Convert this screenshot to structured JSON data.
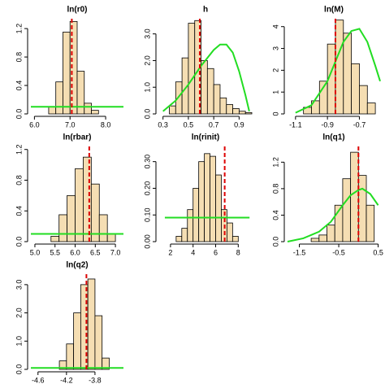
{
  "chart_data": [
    {
      "type": "histogram",
      "title": "ln(r0)",
      "bins": [
        6.4,
        6.6,
        6.8,
        7.0,
        7.2,
        7.4,
        7.6,
        7.8
      ],
      "counts": [
        0.1,
        0.45,
        1.15,
        1.3,
        0.6,
        0.15,
        0.05
      ],
      "xlim": [
        5.9,
        8.5
      ],
      "ylim": [
        0,
        1.35
      ],
      "xticks": [
        {
          "value": 6,
          "label": "6.0"
        },
        {
          "value": 7,
          "label": "7.0"
        },
        {
          "value": 8,
          "label": "8.0"
        }
      ],
      "yticks": [
        {
          "value": 0,
          "label": "0.0"
        },
        0.4,
        0.8,
        1.2
      ],
      "bar_color": "#f5deb3",
      "estimate": 7.05,
      "estimate_color": "#dd0000",
      "prior": {
        "x": [
          5.9,
          8.5
        ],
        "values": [
          0.1,
          0.1
        ]
      },
      "prior_color": "#22dd22"
    },
    {
      "type": "histogram",
      "title": "h",
      "bins": [
        0.35,
        0.4,
        0.45,
        0.5,
        0.55,
        0.6,
        0.65,
        0.7,
        0.75,
        0.8,
        0.85,
        0.9,
        0.95,
        1.0
      ],
      "counts": [
        0.3,
        1.2,
        2.1,
        3.4,
        3.5,
        2.0,
        1.7,
        1.1,
        0.6,
        0.35,
        0.2,
        0.1,
        0.05
      ],
      "xlim": [
        0.27,
        1.0
      ],
      "ylim": [
        0,
        3.6
      ],
      "xticks": [
        0.3,
        0.5,
        0.7,
        0.9
      ],
      "yticks": [
        {
          "value": 0,
          "label": "0.0"
        },
        {
          "value": 1,
          "label": "1.0"
        },
        {
          "value": 2,
          "label": "2.0"
        },
        {
          "value": 3,
          "label": "3.0"
        }
      ],
      "bar_color": "#f5deb3",
      "estimate": 0.59,
      "estimate_color": "#dd0000",
      "prior": {
        "x": [
          0.3,
          0.4,
          0.5,
          0.6,
          0.7,
          0.75,
          0.8,
          0.85,
          0.9,
          0.95,
          0.98
        ],
        "values": [
          0.1,
          0.5,
          1.1,
          1.8,
          2.4,
          2.6,
          2.6,
          2.3,
          1.6,
          0.7,
          0.1
        ]
      },
      "prior_color": "#22dd22"
    },
    {
      "type": "histogram",
      "title": "ln(M)",
      "bins": [
        -1.05,
        -1.0,
        -0.95,
        -0.9,
        -0.85,
        -0.8,
        -0.75,
        -0.7,
        -0.65,
        -0.6
      ],
      "counts": [
        0.3,
        0.6,
        1.5,
        3.2,
        4.3,
        3.7,
        2.3,
        1.3,
        0.5
      ],
      "xlim": [
        -1.15,
        -0.57
      ],
      "ylim": [
        0,
        4.4
      ],
      "xticks": [
        -1.1,
        -0.9,
        -0.7
      ],
      "yticks": [
        0,
        1,
        2,
        3,
        4
      ],
      "bar_color": "#f5deb3",
      "estimate": -0.85,
      "estimate_color": "#dd0000",
      "prior": {
        "x": [
          -1.1,
          -1.0,
          -0.9,
          -0.85,
          -0.8,
          -0.75,
          -0.7,
          -0.65,
          -0.6,
          -0.57
        ],
        "values": [
          0.05,
          0.4,
          1.5,
          2.4,
          3.3,
          3.8,
          3.9,
          3.3,
          2.2,
          1.5
        ]
      },
      "prior_color": "#22dd22"
    },
    {
      "type": "histogram",
      "title": "ln(rbar)",
      "bins": [
        5.4,
        5.6,
        5.8,
        6.0,
        6.2,
        6.4,
        6.6,
        6.8,
        7.0
      ],
      "counts": [
        0.07,
        0.35,
        0.6,
        0.95,
        1.1,
        0.75,
        0.35,
        0.1
      ],
      "xlim": [
        4.9,
        7.2
      ],
      "ylim": [
        0,
        1.25
      ],
      "xticks": [
        {
          "value": 5,
          "label": "5.0"
        },
        5.5,
        {
          "value": 6,
          "label": "6.0"
        },
        6.5,
        {
          "value": 7,
          "label": "7.0"
        }
      ],
      "yticks": [
        {
          "value": 0,
          "label": "0.0"
        },
        0.4,
        0.8,
        1.2
      ],
      "bar_color": "#f5deb3",
      "estimate": 6.35,
      "estimate_color": "#dd0000",
      "prior": {
        "x": [
          4.9,
          7.2
        ],
        "values": [
          0.1,
          0.1
        ]
      },
      "prior_color": "#22dd22"
    },
    {
      "type": "histogram",
      "title": "ln(rinit)",
      "bins": [
        2.5,
        3.0,
        3.5,
        4.0,
        4.5,
        5.0,
        5.5,
        6.0,
        6.5,
        7.0,
        7.5,
        8.0
      ],
      "counts": [
        0.02,
        0.05,
        0.12,
        0.2,
        0.3,
        0.33,
        0.32,
        0.25,
        0.12,
        0.07,
        0.02
      ],
      "xlim": [
        1.0,
        9.2
      ],
      "ylim": [
        0,
        0.36
      ],
      "xticks": [
        2,
        4,
        6,
        8
      ],
      "yticks": [
        {
          "value": 0,
          "label": "0.00"
        },
        {
          "value": 0.1,
          "label": "0.10"
        },
        {
          "value": 0.2,
          "label": "0.20"
        },
        {
          "value": 0.3,
          "label": "0.30"
        }
      ],
      "bar_color": "#f5deb3",
      "estimate": 6.8,
      "estimate_color": "#dd0000",
      "prior": {
        "x": [
          1.5,
          9.0
        ],
        "values": [
          0.09,
          0.09
        ]
      },
      "prior_color": "#22dd22"
    },
    {
      "type": "histogram",
      "title": "ln(q1)",
      "bins": [
        -1.2,
        -1.0,
        -0.8,
        -0.6,
        -0.4,
        -0.2,
        0.0,
        0.2,
        0.4
      ],
      "counts": [
        0.05,
        0.1,
        0.25,
        0.55,
        0.95,
        1.35,
        1.0,
        0.55
      ],
      "xlim": [
        -1.8,
        0.55
      ],
      "ylim": [
        0,
        1.45
      ],
      "xticks": [
        -1.5,
        -0.5,
        0.5
      ],
      "yticks": [
        {
          "value": 0,
          "label": "0.0"
        },
        0.4,
        0.8,
        1.2
      ],
      "bar_color": "#f5deb3",
      "estimate": 0.0,
      "estimate_color": "#dd0000",
      "prior": {
        "x": [
          -1.8,
          -1.4,
          -1.0,
          -0.7,
          -0.4,
          -0.2,
          0.0,
          0.1,
          0.3,
          0.5
        ],
        "values": [
          0.0,
          0.05,
          0.15,
          0.3,
          0.55,
          0.7,
          0.78,
          0.8,
          0.72,
          0.55
        ]
      },
      "prior_color": "#22dd22"
    },
    {
      "type": "histogram",
      "title": "ln(q2)",
      "bins": [
        -4.3,
        -4.2,
        -4.1,
        -4.0,
        -3.9,
        -3.8,
        -3.7,
        -3.6
      ],
      "counts": [
        0.3,
        0.9,
        2.0,
        3.0,
        3.2,
        1.9,
        0.4
      ],
      "xlim": [
        -4.7,
        -3.4
      ],
      "ylim": [
        0,
        3.4
      ],
      "xticks": [
        -4.6,
        -4.2,
        -3.8
      ],
      "yticks": [
        {
          "value": 0,
          "label": "0.0"
        },
        {
          "value": 1,
          "label": "1.0"
        },
        {
          "value": 2,
          "label": "2.0"
        },
        {
          "value": 3,
          "label": "3.0"
        }
      ],
      "bar_color": "#f5deb3",
      "estimate": -3.92,
      "estimate_color": "#dd0000",
      "prior": {
        "x": [
          -4.7,
          -3.4
        ],
        "values": [
          0.05,
          0.05
        ]
      },
      "prior_color": "#22dd22"
    }
  ]
}
